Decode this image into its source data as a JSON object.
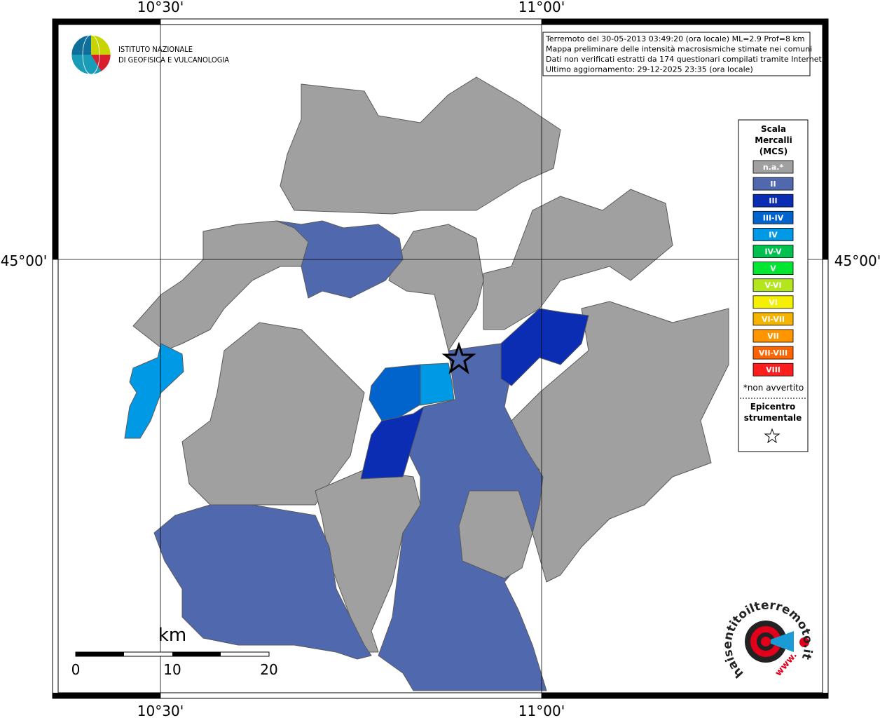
{
  "header": {
    "org_line1": "ISTITUTO NAZIONALE",
    "org_line2": "DI GEOFISICA E VULCANOLOGIA"
  },
  "info": [
    "Terremoto del 30-05-2013 03:49:20 (ora locale) ML=2.9 Prof=8 km",
    "Mappa preliminare delle intensità macrosismiche stimate nei comuni",
    "Dati non verificati estratti da 174 questionari compilati tramite Internet.",
    "Ultimo aggiornamento: 29-12-2025 23:35 (ora locale)"
  ],
  "grid_labels": {
    "top": [
      "10°30'",
      "11°00'"
    ],
    "bottom": [
      "10°30'",
      "11°00'"
    ],
    "left": "45°00'",
    "right": "45°00'"
  },
  "legend": {
    "title": [
      "Scala",
      "Mercalli",
      "(MCS)"
    ],
    "items": [
      {
        "label": "n.a.*",
        "color": "#a0a0a0"
      },
      {
        "label": "II",
        "color": "#5068ae"
      },
      {
        "label": "III",
        "color": "#0a2db4"
      },
      {
        "label": "III-IV",
        "color": "#0064cc"
      },
      {
        "label": "IV",
        "color": "#0099e6"
      },
      {
        "label": "IV-V",
        "color": "#00c050"
      },
      {
        "label": "V",
        "color": "#00e632"
      },
      {
        "label": "V-VI",
        "color": "#b4e61e"
      },
      {
        "label": "VI",
        "color": "#f5f000"
      },
      {
        "label": "VI-VII",
        "color": "#f5b400"
      },
      {
        "label": "VII",
        "color": "#ff9600"
      },
      {
        "label": "VII-VIII",
        "color": "#ff6400"
      },
      {
        "label": "VIII",
        "color": "#ff1e1e"
      }
    ],
    "note": "*non avvertito",
    "epicenter": [
      "Epicentro",
      "strumentale"
    ]
  },
  "scale_bar": {
    "unit": "km",
    "labels": [
      "0",
      "10",
      "20"
    ]
  },
  "logo": {
    "site": "haisentitoilterremoto.it",
    "prefix": "www."
  }
}
